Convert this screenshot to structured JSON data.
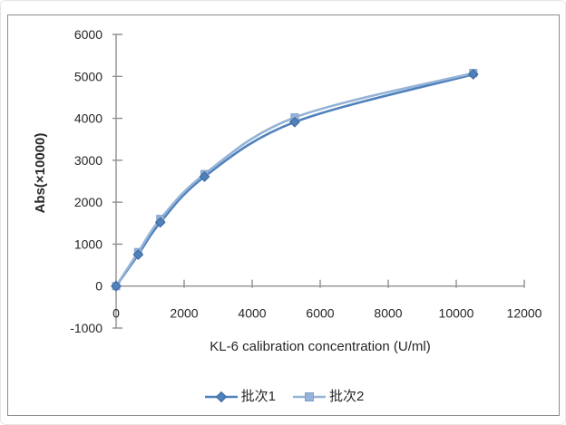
{
  "chart_data": {
    "type": "line",
    "title": "",
    "xlabel": "KL-6 calibration concentration (U/ml)",
    "ylabel": "Abs(×10000)",
    "x": [
      0,
      650,
      1300,
      2600,
      5250,
      10500
    ],
    "series": [
      {
        "name": "批次1",
        "values": [
          0,
          750,
          1520,
          2610,
          3910,
          5050
        ],
        "color": "#4f81bd",
        "marker_stroke": "#3d6699",
        "marker": "diamond"
      },
      {
        "name": "批次2",
        "values": [
          0,
          810,
          1600,
          2670,
          4020,
          5080
        ],
        "color": "#95b3d7",
        "marker_stroke": "#7da0c9",
        "marker": "square"
      }
    ],
    "xlim": [
      0,
      12000
    ],
    "ylim": [
      -1000,
      6000
    ],
    "x_ticks": [
      0,
      2000,
      4000,
      6000,
      8000,
      10000,
      12000
    ],
    "y_ticks": [
      -1000,
      0,
      1000,
      2000,
      3000,
      4000,
      5000,
      6000
    ],
    "grid": false,
    "smooth": true,
    "legend_position": "bottom"
  },
  "colors": {
    "axis": "#8f8f8f",
    "frame_border": "#8c8c8c",
    "text": "#262626"
  }
}
